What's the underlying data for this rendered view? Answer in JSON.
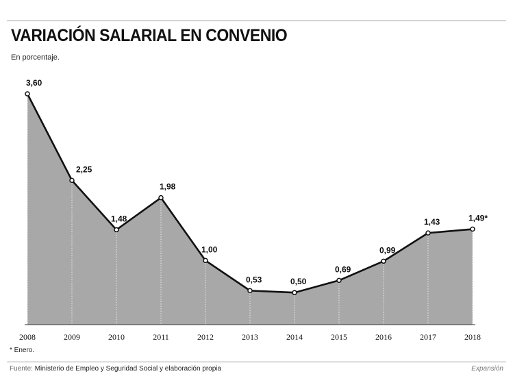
{
  "chart_data": {
    "type": "area",
    "title": "VARIACIÓN SALARIAL EN CONVENIO",
    "subtitle": "En porcentaje.",
    "categories": [
      "2008",
      "2009",
      "2010",
      "2011",
      "2012",
      "2013",
      "2014",
      "2015",
      "2016",
      "2017",
      "2018"
    ],
    "values": [
      3.6,
      2.25,
      1.48,
      1.98,
      1.0,
      0.53,
      0.5,
      0.69,
      0.99,
      1.43,
      1.49
    ],
    "data_labels": [
      "3,60",
      "2,25",
      "1,48",
      "1,98",
      "1,00",
      "0,53",
      "0,50",
      "0,69",
      "0,99",
      "1,43",
      "1,49*"
    ],
    "ylim": [
      0,
      3.6
    ],
    "grid": "vertical dotted",
    "colors": {
      "area": "#a8a8a8",
      "line": "#111111",
      "marker_fill": "#ffffff"
    }
  },
  "footnote": "* Enero.",
  "source": {
    "label": "Fuente:",
    "text": "Ministerio de Empleo y Seguridad Social y elaboración propia"
  },
  "brand": "Expansión"
}
